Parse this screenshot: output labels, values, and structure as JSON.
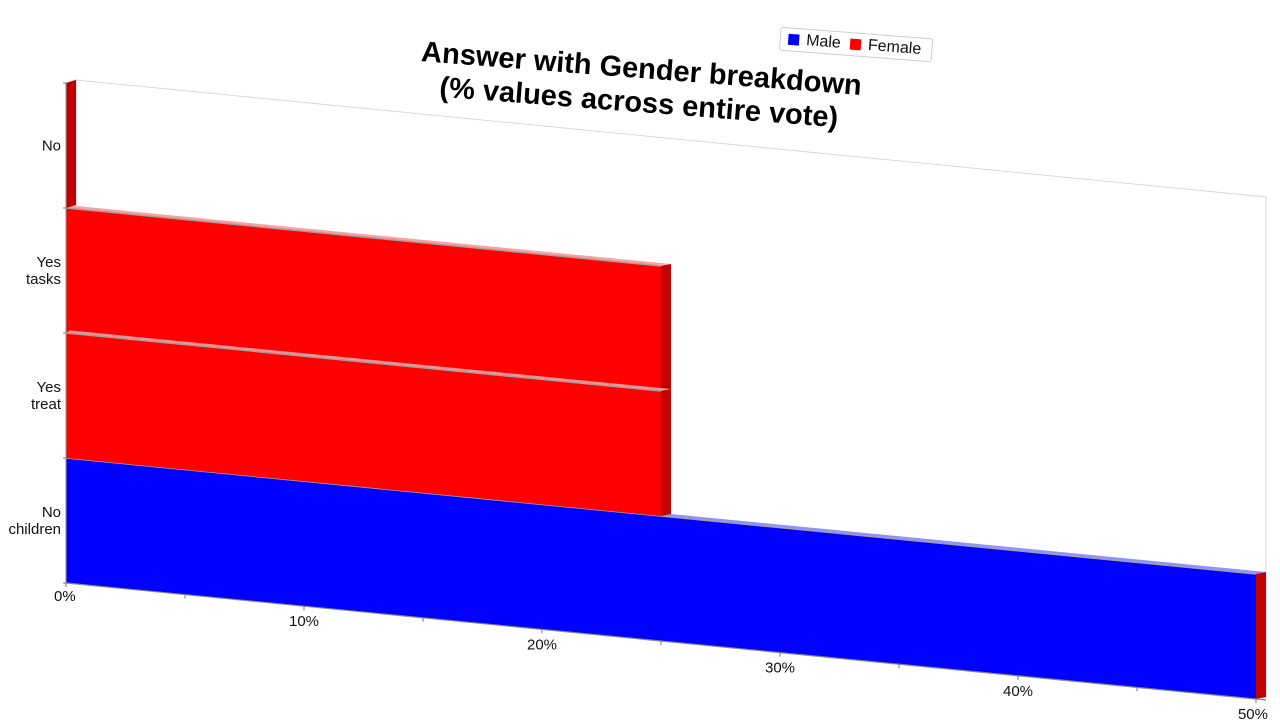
{
  "chart_data": {
    "type": "bar",
    "orientation": "horizontal",
    "stacked": true,
    "title": [
      "Answer with Gender breakdown",
      "(% values across entire vote)"
    ],
    "categories": [
      "No",
      "Yes tasks",
      "Yes treat",
      "No children"
    ],
    "category_lines": [
      [
        "No"
      ],
      [
        "Yes",
        "tasks"
      ],
      [
        "Yes",
        "treat"
      ],
      [
        "No",
        "children"
      ]
    ],
    "series": [
      {
        "name": "Male",
        "color": "#0000ff",
        "values": [
          0,
          0,
          0,
          50
        ]
      },
      {
        "name": "Female",
        "color": "#ff0000",
        "values": [
          0,
          25,
          25,
          0
        ]
      }
    ],
    "x_ticks": [
      "0%",
      "10%",
      "20%",
      "30%",
      "40%",
      "50%"
    ],
    "xlim": [
      0,
      50
    ],
    "legend": "top-right",
    "grid": false
  }
}
